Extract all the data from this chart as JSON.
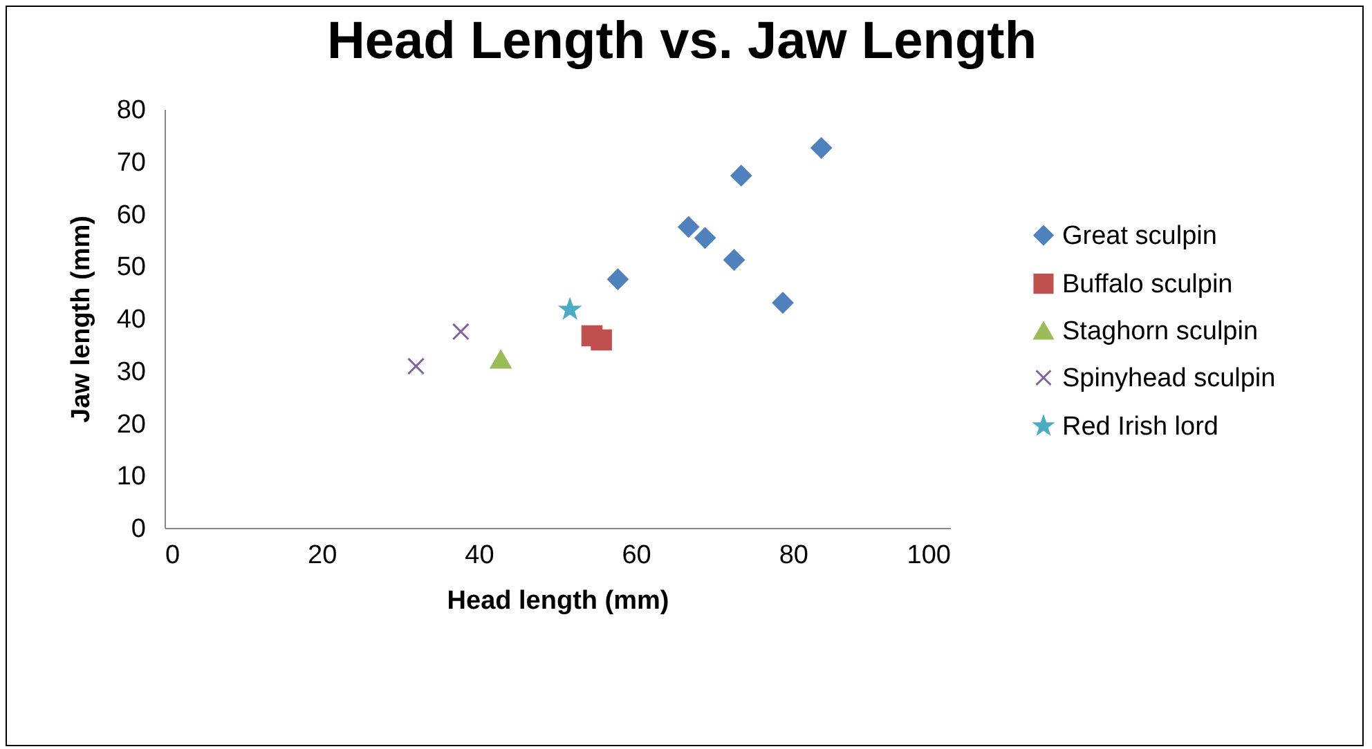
{
  "chart_data": {
    "type": "scatter",
    "title": "Head Length vs. Jaw Length",
    "xlabel": "Head length (mm)",
    "ylabel": "Jaw length (mm)",
    "xlim": [
      0,
      100
    ],
    "xticks": [
      0,
      20,
      40,
      60,
      80,
      100
    ],
    "ylim": [
      0,
      80
    ],
    "yticks": [
      0,
      10,
      20,
      30,
      40,
      50,
      60,
      70,
      80
    ],
    "grid": false,
    "legend": "right",
    "series": [
      {
        "name": "Great sculpin",
        "color": "#4f81bd",
        "marker": "diamond",
        "x": [
          83.6,
          73.4,
          66.7,
          68.8,
          57.7,
          72.5,
          78.7
        ],
        "values": [
          72.6,
          67.3,
          57.5,
          55.4,
          47.5,
          51.2,
          43.0
        ]
      },
      {
        "name": "Buffalo sculpin",
        "color": "#c0504d",
        "marker": "square",
        "x": [
          54.4,
          55.6
        ],
        "values": [
          36.7,
          35.9
        ]
      },
      {
        "name": "Staghorn sculpin",
        "color": "#9bbb59",
        "marker": "triangle",
        "x": [
          42.8
        ],
        "values": [
          32.2
        ]
      },
      {
        "name": "Spinyhead sculpin",
        "color": "#8064a2",
        "marker": "cross",
        "x": [
          32.0,
          37.7
        ],
        "values": [
          30.9,
          37.5
        ]
      },
      {
        "name": "Red Irish lord",
        "color": "#4bacc6",
        "marker": "star",
        "x": [
          51.6
        ],
        "values": [
          41.7
        ]
      }
    ]
  }
}
